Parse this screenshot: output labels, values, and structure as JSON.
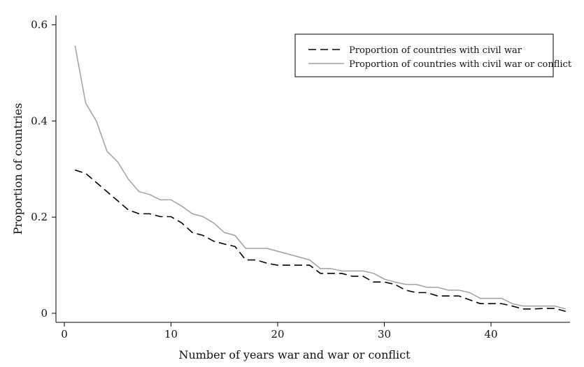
{
  "chart_data": {
    "type": "line",
    "xlabel": "Number of years war and war or conflict",
    "ylabel": "Proportion of countries",
    "xlim": [
      0,
      47.5
    ],
    "ylim": [
      0,
      0.6
    ],
    "xticks": [
      0,
      10,
      20,
      30,
      40
    ],
    "xtick_labels": [
      "0",
      "10",
      "20",
      "30",
      "40"
    ],
    "yticks": [
      0,
      0.2,
      0.4,
      0.6
    ],
    "ytick_labels": [
      "0",
      "0.2",
      "0.4",
      "0.6"
    ],
    "grid": false,
    "legend_position": "top-right",
    "series": [
      {
        "name": "Proportion of countries with civil war",
        "style": "dashed",
        "color": "#000000",
        "x": [
          1,
          2,
          3,
          4,
          5,
          6,
          7,
          8,
          9,
          10,
          11,
          12,
          13,
          14,
          15,
          16,
          17,
          18,
          19,
          20,
          21,
          22,
          23,
          24,
          25,
          26,
          27,
          28,
          29,
          30,
          31,
          32,
          33,
          34,
          35,
          36,
          37,
          38,
          39,
          40,
          41,
          42,
          43,
          44,
          45,
          46,
          47
        ],
        "y": [
          0.298,
          0.291,
          0.272,
          0.253,
          0.234,
          0.215,
          0.207,
          0.207,
          0.201,
          0.201,
          0.188,
          0.168,
          0.162,
          0.15,
          0.144,
          0.139,
          0.111,
          0.111,
          0.104,
          0.1,
          0.1,
          0.1,
          0.1,
          0.083,
          0.083,
          0.083,
          0.077,
          0.077,
          0.065,
          0.065,
          0.06,
          0.048,
          0.043,
          0.043,
          0.036,
          0.036,
          0.036,
          0.028,
          0.02,
          0.02,
          0.02,
          0.015,
          0.009,
          0.009,
          0.01,
          0.01,
          0.004
        ]
      },
      {
        "name": "Proportion of countries with civil war or conflict",
        "style": "solid",
        "color": "#a0a0a0",
        "x": [
          1,
          2,
          3,
          4,
          5,
          6,
          7,
          8,
          9,
          10,
          11,
          12,
          13,
          14,
          15,
          16,
          17,
          18,
          19,
          20,
          21,
          22,
          23,
          24,
          25,
          26,
          27,
          28,
          29,
          30,
          31,
          32,
          33,
          34,
          35,
          36,
          37,
          38,
          39,
          40,
          41,
          42,
          43,
          44,
          45,
          46,
          47
        ],
        "y": [
          0.557,
          0.437,
          0.4,
          0.337,
          0.315,
          0.279,
          0.253,
          0.247,
          0.236,
          0.236,
          0.223,
          0.207,
          0.201,
          0.188,
          0.168,
          0.162,
          0.135,
          0.135,
          0.135,
          0.129,
          0.123,
          0.117,
          0.111,
          0.093,
          0.093,
          0.088,
          0.088,
          0.088,
          0.083,
          0.071,
          0.065,
          0.06,
          0.06,
          0.054,
          0.054,
          0.048,
          0.048,
          0.043,
          0.031,
          0.031,
          0.031,
          0.02,
          0.015,
          0.015,
          0.015,
          0.015,
          0.009
        ]
      }
    ]
  }
}
